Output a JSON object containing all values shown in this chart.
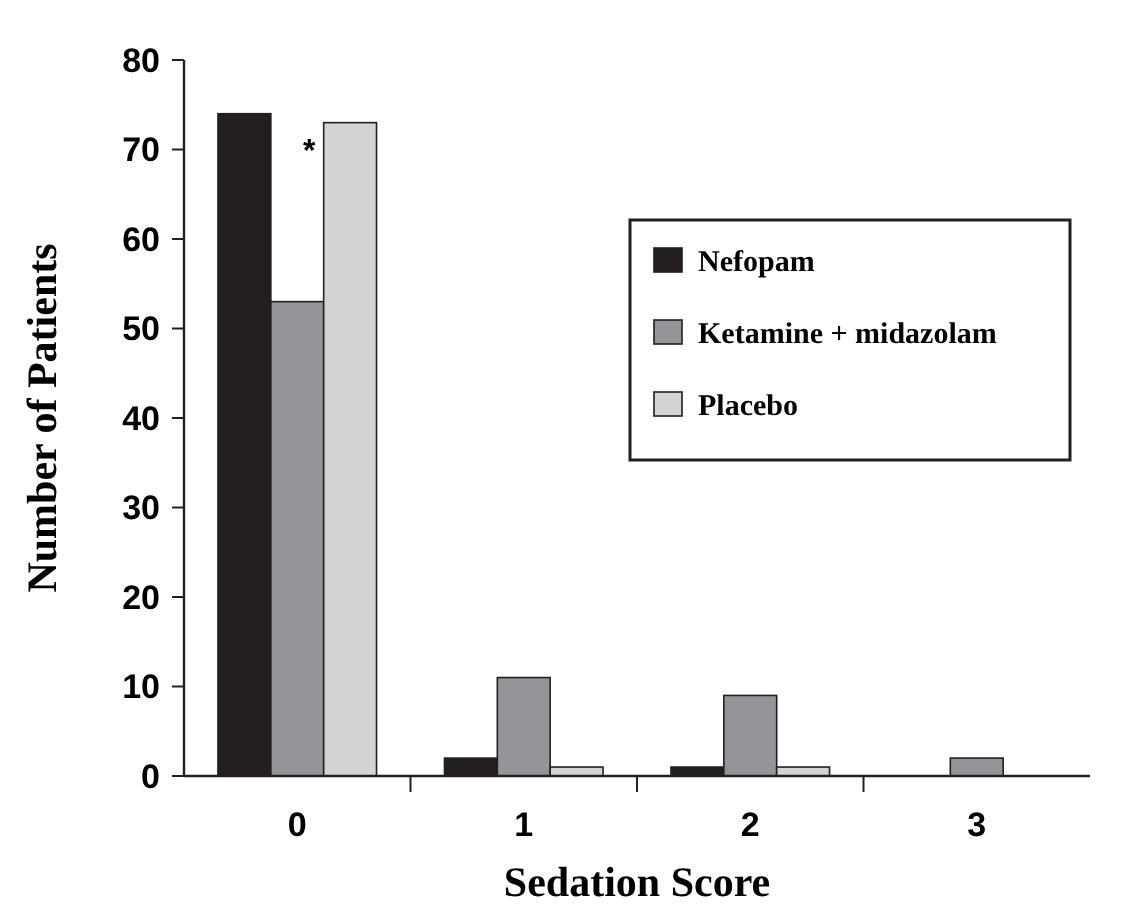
{
  "chart_data": {
    "type": "bar",
    "xlabel": "Sedation Score",
    "ylabel": "Number of Patients",
    "categories": [
      "0",
      "1",
      "2",
      "3"
    ],
    "series": [
      {
        "name": "Nefopam",
        "color": "#231f20",
        "values": [
          74,
          2,
          1,
          0
        ]
      },
      {
        "name": "Ketamine + midazolam",
        "color": "#939598",
        "values": [
          53,
          11,
          9,
          2
        ]
      },
      {
        "name": "Placebo",
        "color": "#d1d3d4",
        "values": [
          73,
          1,
          1,
          0
        ]
      }
    ],
    "ylim": [
      0,
      80
    ],
    "yticks": [
      0,
      10,
      20,
      30,
      40,
      50,
      60,
      70,
      80
    ],
    "grid": false,
    "legend": "top right",
    "annotations": [
      "*"
    ]
  }
}
